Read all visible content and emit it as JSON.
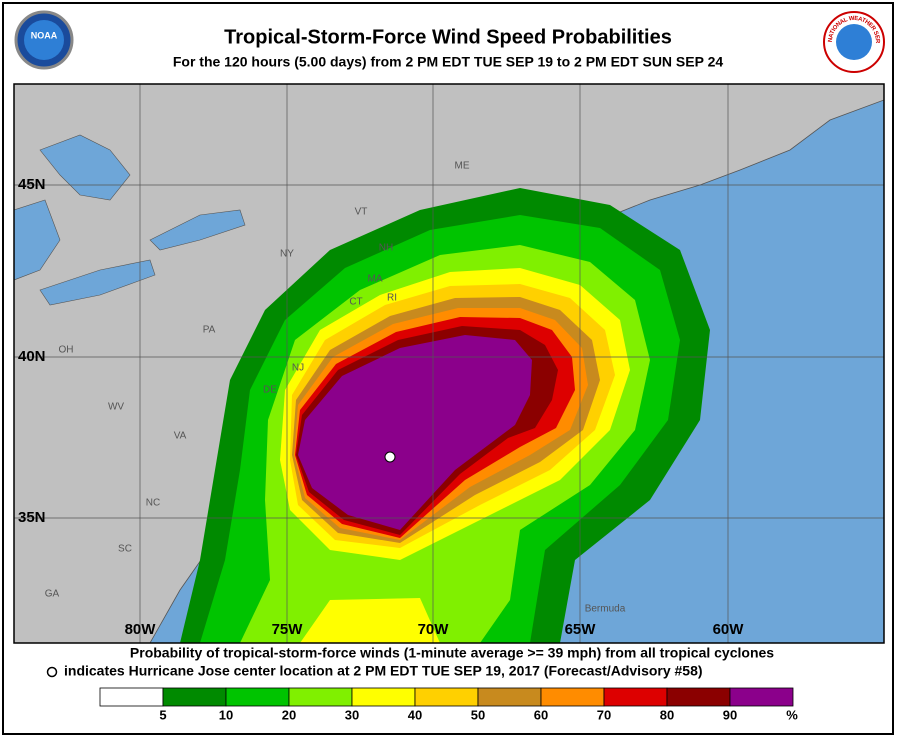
{
  "header": {
    "title": "Tropical-Storm-Force Wind Speed Probabilities",
    "subtitle": "For the 120 hours (5.00 days) from 2 PM EDT TUE SEP 19 to 2 PM EDT SUN SEP 24",
    "left_logo": "NOAA",
    "right_logo": "NATIONAL WEATHER SERVICE"
  },
  "map": {
    "lat_labels": [
      "45N",
      "40N",
      "35N"
    ],
    "lon_labels": [
      "80W",
      "75W",
      "70W",
      "65W",
      "60W"
    ],
    "place_labels": [
      "ME",
      "VT",
      "NH",
      "NY",
      "MA",
      "CT",
      "RI",
      "PA",
      "OH",
      "NJ",
      "DE",
      "WV",
      "VA",
      "NC",
      "SC",
      "GA",
      "Bermuda"
    ]
  },
  "caption": {
    "line1": "Probability of tropical-storm-force winds (1-minute average >= 39 mph) from all tropical cyclones",
    "line2": "indicates Hurricane Jose center location at 2 PM EDT TUE SEP 19, 2017 (Forecast/Advisory #58)"
  },
  "legend": {
    "colors": [
      "#ffffff",
      "#008a00",
      "#00c400",
      "#80f000",
      "#ffff00",
      "#ffd000",
      "#c88a1e",
      "#ff8c00",
      "#dd0000",
      "#8b0000",
      "#8b008b"
    ],
    "labels": [
      "5",
      "10",
      "20",
      "30",
      "40",
      "50",
      "60",
      "70",
      "80",
      "90",
      "%"
    ]
  }
}
